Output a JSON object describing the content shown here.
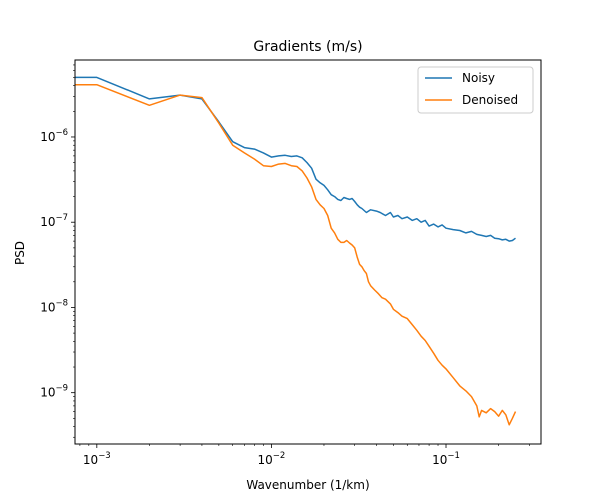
{
  "chart_data": {
    "type": "line",
    "title": "Gradients (m/s)",
    "xlabel": "Wavenumber (1/km)",
    "ylabel": "PSD",
    "xscale": "log",
    "yscale": "log",
    "xlim": [
      0.00075,
      0.35
    ],
    "ylim": [
      2.5e-10,
      8e-06
    ],
    "grid": false,
    "legend_position": "top-right",
    "x_ticks": [
      {
        "value": 0.001,
        "base": "10",
        "exp": "−3"
      },
      {
        "value": 0.01,
        "base": "10",
        "exp": "−2"
      },
      {
        "value": 0.1,
        "base": "10",
        "exp": "−1"
      }
    ],
    "y_ticks": [
      {
        "value": 1e-09,
        "base": "10",
        "exp": "−9"
      },
      {
        "value": 1e-08,
        "base": "10",
        "exp": "−8"
      },
      {
        "value": 1e-07,
        "base": "10",
        "exp": "−7"
      },
      {
        "value": 1e-06,
        "base": "10",
        "exp": "−6"
      }
    ],
    "series": [
      {
        "name": "Noisy",
        "color": "#1f77b4",
        "points": [
          [
            0.00075,
            5e-06
          ],
          [
            0.001,
            5e-06
          ],
          [
            0.002,
            2.8e-06
          ],
          [
            0.003,
            3.1e-06
          ],
          [
            0.004,
            2.8e-06
          ],
          [
            0.005,
            1.5e-06
          ],
          [
            0.006,
            8.8e-07
          ],
          [
            0.007,
            7.5e-07
          ],
          [
            0.008,
            7.2e-07
          ],
          [
            0.009,
            6.5e-07
          ],
          [
            0.01,
            5.8e-07
          ],
          [
            0.011,
            6e-07
          ],
          [
            0.012,
            6.1e-07
          ],
          [
            0.013,
            5.9e-07
          ],
          [
            0.014,
            6e-07
          ],
          [
            0.015,
            5.7e-07
          ],
          [
            0.016,
            5e-07
          ],
          [
            0.017,
            4.3e-07
          ],
          [
            0.018,
            3.2e-07
          ],
          [
            0.019,
            2.9e-07
          ],
          [
            0.02,
            2.7e-07
          ],
          [
            0.021,
            2.4e-07
          ],
          [
            0.022,
            2.1e-07
          ],
          [
            0.023,
            2e-07
          ],
          [
            0.024,
            1.85e-07
          ],
          [
            0.025,
            1.8e-07
          ],
          [
            0.026,
            1.95e-07
          ],
          [
            0.027,
            1.9e-07
          ],
          [
            0.028,
            1.85e-07
          ],
          [
            0.029,
            1.9e-07
          ],
          [
            0.03,
            1.75e-07
          ],
          [
            0.031,
            1.6e-07
          ],
          [
            0.032,
            1.5e-07
          ],
          [
            0.033,
            1.45e-07
          ],
          [
            0.035,
            1.3e-07
          ],
          [
            0.037,
            1.4e-07
          ],
          [
            0.04,
            1.35e-07
          ],
          [
            0.042,
            1.3e-07
          ],
          [
            0.045,
            1.2e-07
          ],
          [
            0.048,
            1.3e-07
          ],
          [
            0.05,
            1.15e-07
          ],
          [
            0.053,
            1.2e-07
          ],
          [
            0.056,
            1.1e-07
          ],
          [
            0.06,
            1.15e-07
          ],
          [
            0.064,
            1.05e-07
          ],
          [
            0.068,
            1.1e-07
          ],
          [
            0.072,
            1e-07
          ],
          [
            0.076,
            1.05e-07
          ],
          [
            0.08,
            9e-08
          ],
          [
            0.085,
            9.5e-08
          ],
          [
            0.09,
            8.8e-08
          ],
          [
            0.095,
            9.3e-08
          ],
          [
            0.1,
            8.5e-08
          ],
          [
            0.11,
            8.2e-08
          ],
          [
            0.12,
            8e-08
          ],
          [
            0.13,
            7.5e-08
          ],
          [
            0.14,
            7.8e-08
          ],
          [
            0.15,
            7.2e-08
          ],
          [
            0.16,
            7e-08
          ],
          [
            0.17,
            6.8e-08
          ],
          [
            0.18,
            7e-08
          ],
          [
            0.19,
            6.5e-08
          ],
          [
            0.2,
            6.4e-08
          ],
          [
            0.21,
            6.2e-08
          ],
          [
            0.22,
            6.3e-08
          ],
          [
            0.23,
            6e-08
          ],
          [
            0.24,
            6.1e-08
          ],
          [
            0.25,
            6.5e-08
          ]
        ]
      },
      {
        "name": "Denoised",
        "color": "#ff7f0e",
        "points": [
          [
            0.00075,
            4.1e-06
          ],
          [
            0.001,
            4.1e-06
          ],
          [
            0.002,
            2.35e-06
          ],
          [
            0.003,
            3.1e-06
          ],
          [
            0.004,
            2.9e-06
          ],
          [
            0.005,
            1.45e-06
          ],
          [
            0.006,
            8e-07
          ],
          [
            0.007,
            6.5e-07
          ],
          [
            0.008,
            5.5e-07
          ],
          [
            0.009,
            4.6e-07
          ],
          [
            0.01,
            4.5e-07
          ],
          [
            0.011,
            4.8e-07
          ],
          [
            0.012,
            4.9e-07
          ],
          [
            0.013,
            4.6e-07
          ],
          [
            0.014,
            4.5e-07
          ],
          [
            0.015,
            4e-07
          ],
          [
            0.016,
            3.3e-07
          ],
          [
            0.017,
            2.6e-07
          ],
          [
            0.018,
            1.85e-07
          ],
          [
            0.019,
            1.6e-07
          ],
          [
            0.02,
            1.45e-07
          ],
          [
            0.021,
            1.2e-07
          ],
          [
            0.022,
            8.5e-08
          ],
          [
            0.023,
            7.5e-08
          ],
          [
            0.024,
            6.3e-08
          ],
          [
            0.025,
            5.8e-08
          ],
          [
            0.026,
            5.8e-08
          ],
          [
            0.027,
            6.1e-08
          ],
          [
            0.028,
            5.7e-08
          ],
          [
            0.029,
            5.4e-08
          ],
          [
            0.03,
            5e-08
          ],
          [
            0.031,
            3.9e-08
          ],
          [
            0.032,
            3.2e-08
          ],
          [
            0.033,
            3e-08
          ],
          [
            0.034,
            2.7e-08
          ],
          [
            0.035,
            2.5e-08
          ],
          [
            0.036,
            2e-08
          ],
          [
            0.037,
            1.8e-08
          ],
          [
            0.039,
            1.6e-08
          ],
          [
            0.041,
            1.45e-08
          ],
          [
            0.043,
            1.3e-08
          ],
          [
            0.045,
            1.25e-08
          ],
          [
            0.048,
            1.1e-08
          ],
          [
            0.05,
            9.5e-09
          ],
          [
            0.053,
            8.7e-09
          ],
          [
            0.056,
            7.9e-09
          ],
          [
            0.06,
            7.4e-09
          ],
          [
            0.064,
            6.3e-09
          ],
          [
            0.068,
            5.4e-09
          ],
          [
            0.072,
            4.6e-09
          ],
          [
            0.076,
            4.1e-09
          ],
          [
            0.08,
            3.5e-09
          ],
          [
            0.085,
            2.9e-09
          ],
          [
            0.09,
            2.4e-09
          ],
          [
            0.095,
            2.1e-09
          ],
          [
            0.1,
            1.9e-09
          ],
          [
            0.11,
            1.5e-09
          ],
          [
            0.12,
            1.2e-09
          ],
          [
            0.13,
            1.05e-09
          ],
          [
            0.14,
            9e-10
          ],
          [
            0.15,
            7e-10
          ],
          [
            0.155,
            5.2e-10
          ],
          [
            0.16,
            6.2e-10
          ],
          [
            0.17,
            5.8e-10
          ],
          [
            0.18,
            6.5e-10
          ],
          [
            0.19,
            6e-10
          ],
          [
            0.2,
            5.3e-10
          ],
          [
            0.21,
            6.2e-10
          ],
          [
            0.22,
            5.5e-10
          ],
          [
            0.23,
            4.2e-10
          ],
          [
            0.24,
            5e-10
          ],
          [
            0.25,
            6e-10
          ]
        ]
      }
    ]
  }
}
